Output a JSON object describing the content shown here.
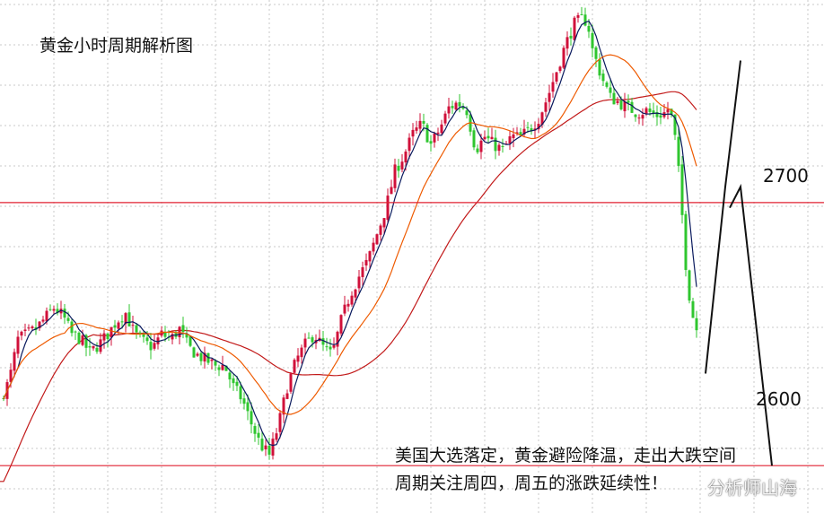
{
  "chart_title": "黄金小时周期解析图",
  "captions": [
    "美国大选落定，黄金避险降温，走出大跌空间",
    "周期关注周四，周五的涨跌延续性！"
  ],
  "watermark": "分析师山海",
  "colors": {
    "up": "#d0103a",
    "down": "#2fc62f",
    "ma_fast": "#0a1a5e",
    "ma_mid": "#ee5a00",
    "ma_slow": "#c21a1a",
    "level_line": "#e02030",
    "projection": "#111111",
    "grid": "#c8c8c8"
  },
  "chart_data": {
    "type": "candlestick",
    "title": "黄金小时周期解析图",
    "ylim": [
      2582,
      2777
    ],
    "horizontal_levels": [
      {
        "label": "2700",
        "value": 2700
      },
      {
        "label": "2600",
        "value": 2600
      }
    ],
    "grid": true,
    "approx_path_points": [
      [
        0,
        2625
      ],
      [
        10,
        2632
      ],
      [
        20,
        2648
      ],
      [
        30,
        2650
      ],
      [
        40,
        2652
      ],
      [
        50,
        2656
      ],
      [
        60,
        2660
      ],
      [
        70,
        2657
      ],
      [
        80,
        2650
      ],
      [
        90,
        2648
      ],
      [
        100,
        2643
      ],
      [
        110,
        2646
      ],
      [
        120,
        2650
      ],
      [
        130,
        2655
      ],
      [
        140,
        2658
      ],
      [
        150,
        2650
      ],
      [
        160,
        2647
      ],
      [
        170,
        2645
      ],
      [
        180,
        2650
      ],
      [
        190,
        2648
      ],
      [
        200,
        2652
      ],
      [
        210,
        2645
      ],
      [
        220,
        2642
      ],
      [
        230,
        2640
      ],
      [
        240,
        2638
      ],
      [
        250,
        2638
      ],
      [
        260,
        2630
      ],
      [
        270,
        2625
      ],
      [
        280,
        2616
      ],
      [
        290,
        2608
      ],
      [
        300,
        2604
      ],
      [
        310,
        2615
      ],
      [
        320,
        2630
      ],
      [
        330,
        2640
      ],
      [
        340,
        2646
      ],
      [
        350,
        2650
      ],
      [
        360,
        2645
      ],
      [
        370,
        2642
      ],
      [
        380,
        2655
      ],
      [
        390,
        2665
      ],
      [
        400,
        2672
      ],
      [
        410,
        2678
      ],
      [
        420,
        2688
      ],
      [
        430,
        2698
      ],
      [
        440,
        2712
      ],
      [
        450,
        2718
      ],
      [
        460,
        2726
      ],
      [
        470,
        2730
      ],
      [
        480,
        2722
      ],
      [
        490,
        2728
      ],
      [
        500,
        2736
      ],
      [
        510,
        2738
      ],
      [
        520,
        2735
      ],
      [
        530,
        2720
      ],
      [
        540,
        2725
      ],
      [
        550,
        2722
      ],
      [
        560,
        2720
      ],
      [
        570,
        2725
      ],
      [
        580,
        2725
      ],
      [
        590,
        2728
      ],
      [
        600,
        2732
      ],
      [
        610,
        2740
      ],
      [
        620,
        2750
      ],
      [
        630,
        2760
      ],
      [
        640,
        2768
      ],
      [
        650,
        2770
      ],
      [
        655,
        2768
      ],
      [
        660,
        2758
      ],
      [
        670,
        2748
      ],
      [
        680,
        2740
      ],
      [
        690,
        2738
      ],
      [
        700,
        2736
      ],
      [
        710,
        2734
      ],
      [
        720,
        2735
      ],
      [
        730,
        2733
      ],
      [
        740,
        2734
      ],
      [
        745,
        2736
      ],
      [
        750,
        2730
      ],
      [
        755,
        2716
      ],
      [
        760,
        2695
      ],
      [
        765,
        2672
      ],
      [
        770,
        2660
      ],
      [
        775,
        2652
      ]
    ],
    "moving_average_lines": 3,
    "projection": "V-shaped path drawn as lines after the last candle, apex near the 2700 level, extending up and down"
  }
}
